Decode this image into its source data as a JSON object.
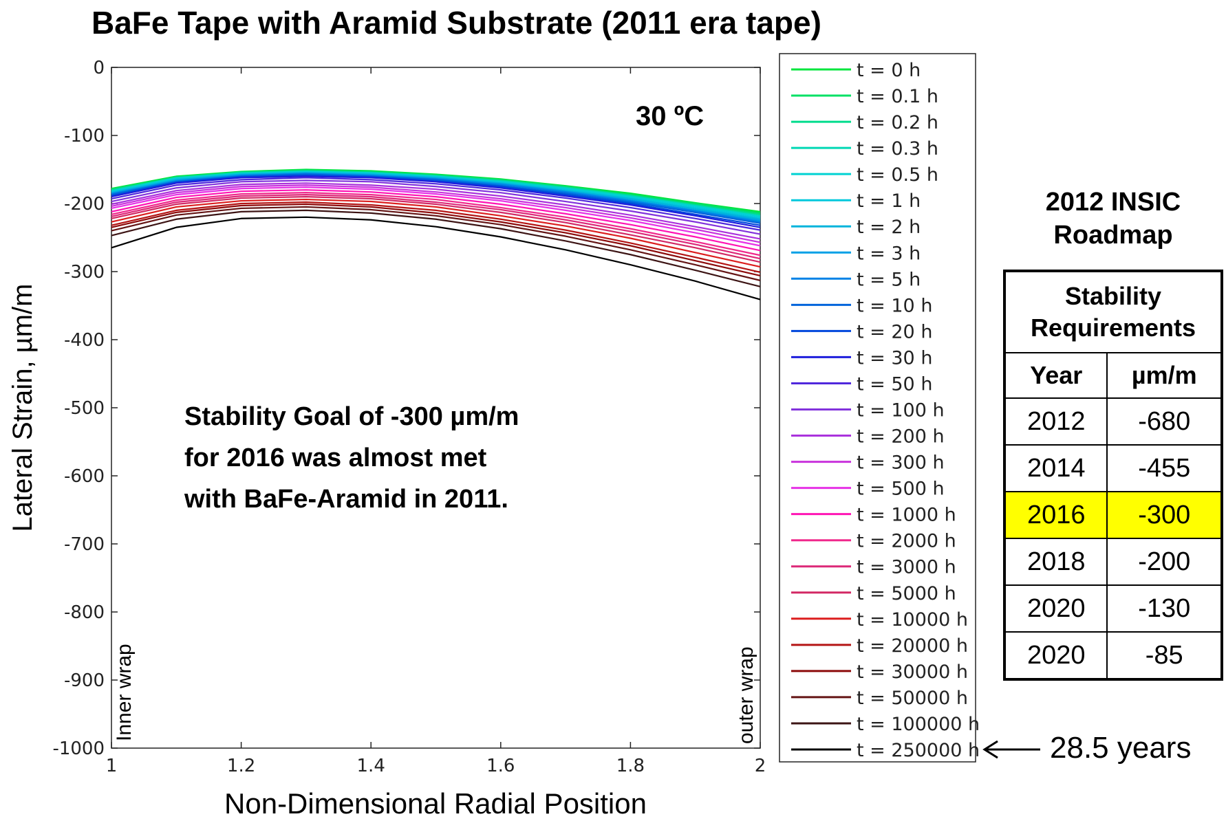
{
  "title": "BaFe Tape with Aramid Substrate (2011 era tape)",
  "chart_data": {
    "type": "line",
    "title": "BaFe Tape with Aramid Substrate (2011 era tape)",
    "xlabel": "Non-Dimensional Radial Position",
    "ylabel": "Lateral Strain, µm/m",
    "xlim": [
      1,
      2
    ],
    "ylim": [
      -1000,
      0
    ],
    "xticks": [
      "1",
      "1.2",
      "1.4",
      "1.6",
      "1.8",
      "2"
    ],
    "yticks": [
      "0",
      "-100",
      "-200",
      "-300",
      "-400",
      "-500",
      "-600",
      "-700",
      "-800",
      "-900",
      "-1000"
    ],
    "grid": false,
    "legend_position": "outside-right",
    "x": [
      1.0,
      1.1,
      1.2,
      1.3,
      1.4,
      1.5,
      1.6,
      1.7,
      1.8,
      1.9,
      2.0
    ],
    "series": [
      {
        "name": "t = 0 h",
        "color": "#00e63c",
        "values": [
          -178,
          -160,
          -153,
          -150,
          -152,
          -157,
          -164,
          -174,
          -185,
          -199,
          -212
        ]
      },
      {
        "name": "t = 0.1 h",
        "color": "#00e064",
        "values": [
          -179,
          -161,
          -154,
          -151,
          -153,
          -158,
          -165,
          -175,
          -187,
          -200,
          -214
        ]
      },
      {
        "name": "t = 0.2 h",
        "color": "#00dc8c",
        "values": [
          -180,
          -162,
          -154,
          -152,
          -154,
          -159,
          -166,
          -176,
          -188,
          -202,
          -216
        ]
      },
      {
        "name": "t = 0.3 h",
        "color": "#00d8b4",
        "values": [
          -181,
          -162,
          -155,
          -153,
          -155,
          -160,
          -167,
          -177,
          -189,
          -203,
          -218
        ]
      },
      {
        "name": "t = 0.5 h",
        "color": "#00d2d2",
        "values": [
          -182,
          -163,
          -156,
          -153,
          -155,
          -160,
          -168,
          -178,
          -190,
          -204,
          -219
        ]
      },
      {
        "name": "t = 1 h",
        "color": "#00c8dc",
        "values": [
          -183,
          -164,
          -157,
          -154,
          -156,
          -161,
          -169,
          -179,
          -192,
          -206,
          -221
        ]
      },
      {
        "name": "t = 2 h",
        "color": "#00b4dc",
        "values": [
          -184,
          -165,
          -157,
          -155,
          -157,
          -162,
          -170,
          -181,
          -193,
          -208,
          -223
        ]
      },
      {
        "name": "t = 3 h",
        "color": "#00a0e6",
        "values": [
          -185,
          -166,
          -158,
          -155,
          -158,
          -163,
          -171,
          -182,
          -195,
          -210,
          -225
        ]
      },
      {
        "name": "t = 5 h",
        "color": "#0082e6",
        "values": [
          -186,
          -167,
          -159,
          -156,
          -159,
          -164,
          -172,
          -183,
          -196,
          -211,
          -227
        ]
      },
      {
        "name": "t = 10 h",
        "color": "#0064dc",
        "values": [
          -187,
          -168,
          -160,
          -157,
          -160,
          -165,
          -174,
          -185,
          -198,
          -213,
          -229
        ]
      },
      {
        "name": "t = 20 h",
        "color": "#0046dc",
        "values": [
          -189,
          -169,
          -161,
          -159,
          -161,
          -167,
          -175,
          -187,
          -200,
          -216,
          -232
        ]
      },
      {
        "name": "t = 30 h",
        "color": "#1e1edc",
        "values": [
          -190,
          -170,
          -162,
          -160,
          -162,
          -168,
          -177,
          -189,
          -202,
          -218,
          -235
        ]
      },
      {
        "name": "t = 50 h",
        "color": "#5028dc",
        "values": [
          -193,
          -173,
          -165,
          -162,
          -165,
          -171,
          -180,
          -192,
          -206,
          -222,
          -239
        ]
      },
      {
        "name": "t = 100 h",
        "color": "#8232dc",
        "values": [
          -197,
          -177,
          -168,
          -166,
          -168,
          -175,
          -184,
          -197,
          -211,
          -227,
          -245
        ]
      },
      {
        "name": "t = 200 h",
        "color": "#aa32dc",
        "values": [
          -201,
          -181,
          -172,
          -170,
          -173,
          -179,
          -189,
          -202,
          -217,
          -234,
          -252
        ]
      },
      {
        "name": "t = 300 h",
        "color": "#c832dc",
        "values": [
          -204,
          -184,
          -175,
          -173,
          -176,
          -183,
          -193,
          -206,
          -221,
          -238,
          -257
        ]
      },
      {
        "name": "t = 500 h",
        "color": "#e632e6",
        "values": [
          -207,
          -187,
          -178,
          -176,
          -179,
          -186,
          -196,
          -210,
          -225,
          -243,
          -262
        ]
      },
      {
        "name": "t = 1000 h",
        "color": "#ff14b4",
        "values": [
          -212,
          -191,
          -182,
          -180,
          -183,
          -190,
          -201,
          -215,
          -231,
          -249,
          -269
        ]
      },
      {
        "name": "t = 2000 h",
        "color": "#f0288c",
        "values": [
          -216,
          -195,
          -186,
          -184,
          -187,
          -194,
          -206,
          -220,
          -237,
          -256,
          -276
        ]
      },
      {
        "name": "t = 3000 h",
        "color": "#dc2878",
        "values": [
          -219,
          -198,
          -189,
          -187,
          -190,
          -198,
          -209,
          -224,
          -241,
          -260,
          -281
        ]
      },
      {
        "name": "t = 5000 h",
        "color": "#d22864",
        "values": [
          -222,
          -201,
          -192,
          -190,
          -193,
          -201,
          -213,
          -228,
          -246,
          -265,
          -286
        ]
      },
      {
        "name": "t = 10000 h",
        "color": "#dc1e1e",
        "values": [
          -227,
          -205,
          -196,
          -194,
          -197,
          -205,
          -218,
          -233,
          -251,
          -272,
          -293
        ]
      },
      {
        "name": "t = 20000 h",
        "color": "#b41414",
        "values": [
          -232,
          -210,
          -200,
          -198,
          -202,
          -210,
          -223,
          -239,
          -258,
          -279,
          -301
        ]
      },
      {
        "name": "t = 30000 h",
        "color": "#8c0a0a",
        "values": [
          -235,
          -213,
          -203,
          -201,
          -205,
          -214,
          -227,
          -243,
          -262,
          -284,
          -306
        ]
      },
      {
        "name": "t = 50000 h",
        "color": "#641414",
        "values": [
          -240,
          -217,
          -207,
          -205,
          -209,
          -218,
          -231,
          -248,
          -268,
          -290,
          -313
        ]
      },
      {
        "name": "t = 100000 h",
        "color": "#3c1414",
        "values": [
          -247,
          -223,
          -212,
          -210,
          -214,
          -223,
          -237,
          -255,
          -275,
          -298,
          -322
        ]
      },
      {
        "name": "t = 250000 h",
        "color": "#000000",
        "values": [
          -265,
          -235,
          -222,
          -220,
          -224,
          -234,
          -249,
          -268,
          -290,
          -314,
          -341
        ]
      }
    ],
    "annotations": {
      "temperature": "30 ºC",
      "goal_line1": "Stability Goal of -300 µm/m",
      "goal_line2": "for 2016 was almost met",
      "goal_line3": "with BaFe-Aramid in 2011.",
      "inner_wrap": "Inner wrap",
      "outer_wrap": "outer wrap",
      "arrow_note": "28.5 years"
    }
  },
  "roadmap": {
    "title_line1": "2012 INSIC",
    "title_line2": "Roadmap",
    "header_line1": "Stability",
    "header_line2": "Requirements",
    "col_year": "Year",
    "col_unit": "µm/m",
    "highlight_color": "#ffff00",
    "rows": [
      {
        "year": "2012",
        "value": "-680"
      },
      {
        "year": "2014",
        "value": "-455"
      },
      {
        "year": "2016",
        "value": "-300",
        "highlight": true
      },
      {
        "year": "2018",
        "value": "-200"
      },
      {
        "year": "2020",
        "value": "-130"
      },
      {
        "year": "2020",
        "value": "-85"
      }
    ]
  }
}
